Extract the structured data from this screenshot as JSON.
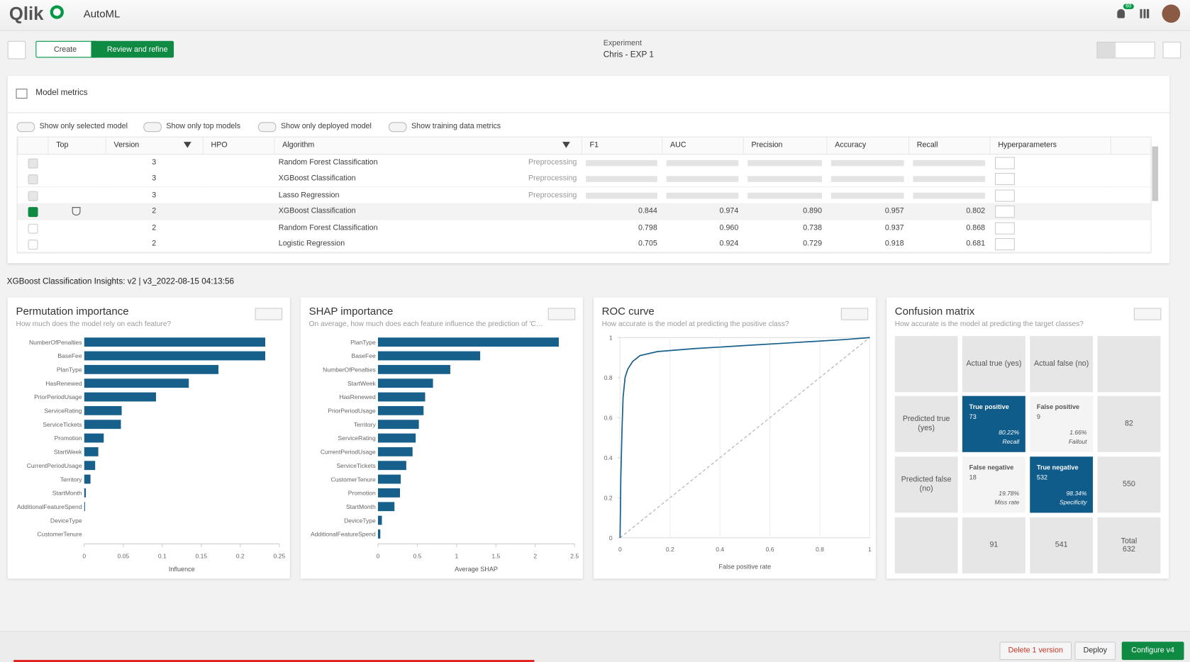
{
  "header": {
    "logo": "Qlik",
    "app": "AutoML",
    "notifications": "60"
  },
  "toolbar": {
    "steps": [
      "Create",
      "Review and refine"
    ],
    "experiment_label": "Experiment",
    "experiment_name": "Chris - EXP 1"
  },
  "metrics": {
    "title": "Model metrics",
    "toggles": [
      "Show only selected model",
      "Show only top models",
      "Show only deployed model",
      "Show training data metrics"
    ],
    "columns": [
      "Top",
      "Version",
      "HPO",
      "Algorithm",
      "F1",
      "AUC",
      "Precision",
      "Accuracy",
      "Recall",
      "Hyperparameters"
    ],
    "rows": [
      {
        "selected": false,
        "version": "3",
        "algorithm": "Random Forest Classification",
        "status": "Preprocessing"
      },
      {
        "selected": false,
        "version": "3",
        "algorithm": "XGBoost Classification",
        "status": "Preprocessing"
      },
      {
        "selected": false,
        "version": "3",
        "algorithm": "Lasso Regression",
        "status": "Preprocessing"
      },
      {
        "selected": true,
        "top": true,
        "version": "2",
        "algorithm": "XGBoost Classification",
        "metrics": [
          "0.844",
          "0.974",
          "0.890",
          "0.957",
          "0.802"
        ]
      },
      {
        "selected": false,
        "version": "2",
        "algorithm": "Random Forest Classification",
        "metrics": [
          "0.798",
          "0.960",
          "0.738",
          "0.937",
          "0.868"
        ]
      },
      {
        "selected": false,
        "version": "2",
        "algorithm": "Logistic Regression",
        "metrics": [
          "0.705",
          "0.924",
          "0.729",
          "0.918",
          "0.681"
        ]
      }
    ]
  },
  "insights": {
    "title": "XGBoost Classification Insights: v2 | v3_2022-08-15 04:13:56"
  },
  "permutation": {
    "type": "bar",
    "orientation": "horizontal",
    "title": "Permutation importance",
    "subtitle": "How much does the model rely on each feature?",
    "categories": [
      "NumberOfPenalties",
      "BaseFee",
      "PlanType",
      "HasRenewed",
      "PriorPeriodUsage",
      "ServiceRating",
      "ServiceTickets",
      "Promotion",
      "StartWeek",
      "CurrentPeriodUsage",
      "Territory",
      "StartMonth",
      "AdditionalFeatureSpend",
      "DeviceType",
      "CustomerTenure"
    ],
    "values": [
      0.232,
      0.232,
      0.172,
      0.134,
      0.092,
      0.048,
      0.047,
      0.025,
      0.018,
      0.014,
      0.008,
      0.002,
      0.001,
      0,
      0
    ],
    "xlim": [
      0,
      0.25
    ],
    "xticks": [
      0,
      0.05,
      0.1,
      0.15,
      0.2,
      0.25
    ],
    "xlabel": "Influence",
    "color": "#18608c"
  },
  "shap": {
    "type": "bar",
    "orientation": "horizontal",
    "title": "SHAP importance",
    "subtitle": "On average, how much does each feature influence the prediction of 'C…",
    "categories": [
      "PlanType",
      "BaseFee",
      "NumberOfPenalties",
      "StartWeek",
      "HasRenewed",
      "PriorPeriodUsage",
      "Territory",
      "ServiceRating",
      "CurrentPeriodUsage",
      "ServiceTickets",
      "CustomerTenure",
      "Promotion",
      "StartMonth",
      "DeviceType",
      "AdditionalFeatureSpend"
    ],
    "values": [
      2.3,
      1.3,
      0.92,
      0.7,
      0.6,
      0.58,
      0.52,
      0.48,
      0.44,
      0.36,
      0.29,
      0.28,
      0.21,
      0.05,
      0.03
    ],
    "xlim": [
      0,
      2.5
    ],
    "xticks": [
      0,
      0.5,
      1,
      1.5,
      2,
      2.5
    ],
    "xlabel": "Average SHAP",
    "color": "#18608c"
  },
  "roc": {
    "type": "line",
    "title": "ROC curve",
    "subtitle": "How accurate is the model at predicting the positive class?",
    "x": [
      0,
      0.003,
      0.008,
      0.012,
      0.02,
      0.03,
      0.05,
      0.08,
      0.15,
      0.3,
      0.5,
      0.7,
      0.9,
      1
    ],
    "y": [
      0,
      0.3,
      0.55,
      0.7,
      0.8,
      0.84,
      0.88,
      0.91,
      0.93,
      0.945,
      0.96,
      0.975,
      0.99,
      1
    ],
    "xlim": [
      0,
      1
    ],
    "ylim": [
      0,
      1
    ],
    "xticks": [
      0,
      0.2,
      0.4,
      0.6,
      0.8,
      1
    ],
    "yticks": [
      0,
      0.2,
      0.4,
      0.6,
      0.8,
      1
    ],
    "xlabel": "False positive rate",
    "color": "#18608c",
    "grid": true
  },
  "confusion": {
    "title": "Confusion matrix",
    "subtitle": "How accurate is the model at predicting the target classes?",
    "col_headers": [
      "Actual true (yes)",
      "Actual false (no)"
    ],
    "row_headers": [
      "Predicted true (yes)",
      "Predicted false (no)"
    ],
    "cells": [
      [
        {
          "label": "True positive",
          "count": 73,
          "rate": "80.22%",
          "metric": "Recall",
          "highlight": true
        },
        {
          "label": "False positive",
          "count": 9,
          "rate": "1.66%",
          "metric": "Fallout",
          "highlight": false
        }
      ],
      [
        {
          "label": "False negative",
          "count": 18,
          "rate": "19.78%",
          "metric": "Miss rate",
          "highlight": false
        },
        {
          "label": "True negative",
          "count": 532,
          "rate": "98.34%",
          "metric": "Specificity",
          "highlight": true
        }
      ]
    ],
    "row_totals": [
      82,
      550
    ],
    "col_totals": [
      91,
      541
    ],
    "total_label": "Total",
    "total": 632
  },
  "footer": {
    "buttons": [
      "Delete 1 version",
      "Deploy",
      "Configure v4"
    ]
  }
}
